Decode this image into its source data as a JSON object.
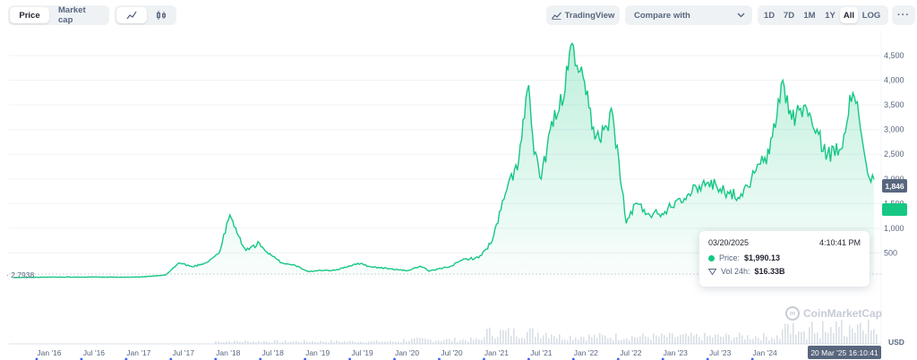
{
  "toolbar": {
    "price_tab": "Price",
    "marketcap_tab": "Market cap",
    "tradingview": "TradingView",
    "compare": "Compare with",
    "ranges": [
      "1D",
      "7D",
      "1M",
      "1Y",
      "All"
    ],
    "active_range": "All",
    "log": "LOG",
    "more": "···"
  },
  "tooltip": {
    "date": "03/20/2025",
    "time": "4:10:41 PM",
    "price_label": "Price:",
    "price_value": "$1,990.13",
    "vol_label": "Vol 24h:",
    "vol_value": "$16.33B"
  },
  "badges": {
    "hover_price": "1,846",
    "start_price": "2.7938",
    "date": "20 Mar '25 16:10:41",
    "currency": "USD"
  },
  "watermark": "CoinMarketCap",
  "colors": {
    "line": "#16c784",
    "accent": "#16c784",
    "text": "#58667e"
  },
  "chart_data": {
    "type": "area",
    "x_tick_labels": [
      "Jan '16",
      "Jul '16",
      "Jan '17",
      "Jul '17",
      "Jan '18",
      "Jul '18",
      "Jan '19",
      "Jul '19",
      "Jan '20",
      "Jul '20",
      "Jan '21",
      "Jul '21",
      "Jan '22",
      "Jul '22",
      "Jan '23",
      "Jul '23",
      "Jan '24"
    ],
    "y_tick_labels": [
      "500",
      "1,000",
      "1,500",
      "2,000",
      "2,500",
      "3,000",
      "3,500",
      "4,000",
      "4,500"
    ],
    "ylim": [
      0,
      4900
    ],
    "xlim": [
      2015.55,
      2025.3
    ],
    "series": [
      {
        "x": [
          2015.6,
          2016.0,
          2016.5,
          2017.0,
          2017.3,
          2017.45,
          2017.6,
          2017.75,
          2017.9,
          2018.02,
          2018.1,
          2018.2,
          2018.35,
          2018.45,
          2018.6,
          2018.75,
          2018.9,
          2019.0,
          2019.2,
          2019.45,
          2019.6,
          2019.8,
          2020.0,
          2020.15,
          2020.25,
          2020.5,
          2020.65,
          2020.8,
          2020.95,
          2021.1,
          2021.25,
          2021.36,
          2021.42,
          2021.5,
          2021.6,
          2021.7,
          2021.8,
          2021.86,
          2021.9,
          2022.0,
          2022.1,
          2022.2,
          2022.3,
          2022.45,
          2022.55,
          2022.7,
          2022.85,
          2023.0,
          2023.15,
          2023.3,
          2023.45,
          2023.6,
          2023.75,
          2023.85,
          2023.95,
          2024.05,
          2024.2,
          2024.3,
          2024.45,
          2024.55,
          2024.7,
          2024.85,
          2024.95,
          2025.05,
          2025.15,
          2025.22
        ],
        "y": [
          1,
          10,
          12,
          9,
          50,
          300,
          220,
          300,
          500,
          1270,
          900,
          550,
          700,
          480,
          300,
          250,
          120,
          140,
          150,
          290,
          220,
          180,
          140,
          230,
          130,
          240,
          380,
          400,
          730,
          1700,
          2400,
          3900,
          2500,
          2000,
          3000,
          3400,
          4200,
          4700,
          4300,
          3700,
          2800,
          3000,
          3300,
          1100,
          1500,
          1300,
          1300,
          1550,
          1700,
          1900,
          1900,
          1700,
          1650,
          2000,
          2300,
          2500,
          4000,
          3200,
          3500,
          3000,
          2500,
          2600,
          3700,
          3300,
          2100,
          1990
        ]
      }
    ]
  }
}
